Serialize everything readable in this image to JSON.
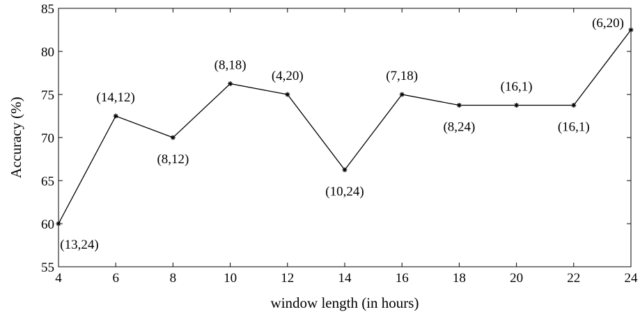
{
  "chart_data": {
    "type": "line",
    "title": "",
    "xlabel": "window length (in hours)",
    "ylabel": "Accuracy (%)",
    "xlim": [
      4,
      24
    ],
    "ylim": [
      55,
      85
    ],
    "xticks": [
      4,
      6,
      8,
      10,
      12,
      14,
      16,
      18,
      20,
      22,
      24
    ],
    "yticks": [
      55,
      60,
      65,
      70,
      75,
      80,
      85
    ],
    "grid": false,
    "legend": "none",
    "marker": "asterisk",
    "line_color": "#000000",
    "series": [
      {
        "x": [
          4,
          6,
          8,
          10,
          12,
          14,
          16,
          18,
          20,
          22,
          24
        ],
        "y": [
          60.0,
          72.5,
          70.0,
          76.25,
          75.0,
          66.25,
          75.0,
          73.75,
          73.75,
          73.75,
          82.5
        ]
      }
    ],
    "annotations": [
      {
        "x": 4,
        "y": 60.0,
        "text": "(13,24)",
        "position": "below"
      },
      {
        "x": 6,
        "y": 72.5,
        "text": "(14,12)",
        "position": "above"
      },
      {
        "x": 8,
        "y": 70.0,
        "text": "(8,12)",
        "position": "below"
      },
      {
        "x": 10,
        "y": 76.25,
        "text": "(8,18)",
        "position": "above"
      },
      {
        "x": 12,
        "y": 75.0,
        "text": "(4,20)",
        "position": "above"
      },
      {
        "x": 14,
        "y": 66.25,
        "text": "(10,24)",
        "position": "below"
      },
      {
        "x": 16,
        "y": 75.0,
        "text": "(7,18)",
        "position": "above"
      },
      {
        "x": 18,
        "y": 73.75,
        "text": "(8,24)",
        "position": "below"
      },
      {
        "x": 20,
        "y": 73.75,
        "text": "(16,1)",
        "position": "above"
      },
      {
        "x": 22,
        "y": 73.75,
        "text": "(16,1)",
        "position": "below"
      },
      {
        "x": 24,
        "y": 82.5,
        "text": "(6,20)",
        "position": "left"
      }
    ]
  }
}
